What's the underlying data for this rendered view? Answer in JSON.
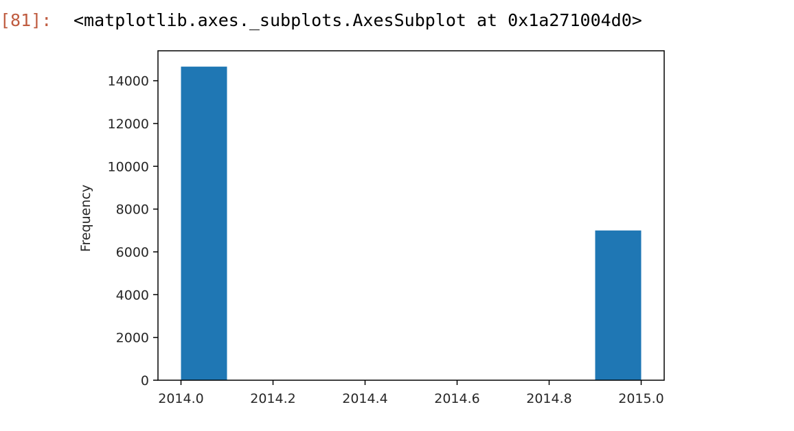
{
  "cell": {
    "prompt": "[81]:",
    "output_text": "<matplotlib.axes._subplots.AxesSubplot at 0x1a271004d0>"
  },
  "chart_data": {
    "type": "bar",
    "title": "",
    "xlabel": "",
    "ylabel": "Frequency",
    "x_range": [
      1993.95,
      2015.05
    ],
    "xlim": [
      2013.95,
      2015.05
    ],
    "ylim": [
      0,
      15400
    ],
    "x_ticks": [
      2014.0,
      2014.2,
      2014.4,
      2014.6,
      2014.8,
      2015.0
    ],
    "x_tick_labels": [
      "2014.0",
      "2014.2",
      "2014.4",
      "2014.6",
      "2014.8",
      "2015.0"
    ],
    "y_ticks": [
      0,
      2000,
      4000,
      6000,
      8000,
      10000,
      12000,
      14000
    ],
    "y_tick_labels": [
      "0",
      "2000",
      "4000",
      "6000",
      "8000",
      "10000",
      "12000",
      "14000"
    ],
    "bins": [
      {
        "x0": 2014.0,
        "x1": 2014.1,
        "value": 14660
      },
      {
        "x0": 2014.1,
        "x1": 2014.2,
        "value": 0
      },
      {
        "x0": 2014.2,
        "x1": 2014.3,
        "value": 0
      },
      {
        "x0": 2014.3,
        "x1": 2014.4,
        "value": 0
      },
      {
        "x0": 2014.4,
        "x1": 2014.5,
        "value": 0
      },
      {
        "x0": 2014.5,
        "x1": 2014.6,
        "value": 0
      },
      {
        "x0": 2014.6,
        "x1": 2014.7,
        "value": 0
      },
      {
        "x0": 2014.7,
        "x1": 2014.8,
        "value": 0
      },
      {
        "x0": 2014.8,
        "x1": 2014.9,
        "value": 0
      },
      {
        "x0": 2014.9,
        "x1": 2015.0,
        "value": 7000
      }
    ],
    "bar_color": "#1f77b4",
    "grid": false,
    "legend": "none"
  }
}
